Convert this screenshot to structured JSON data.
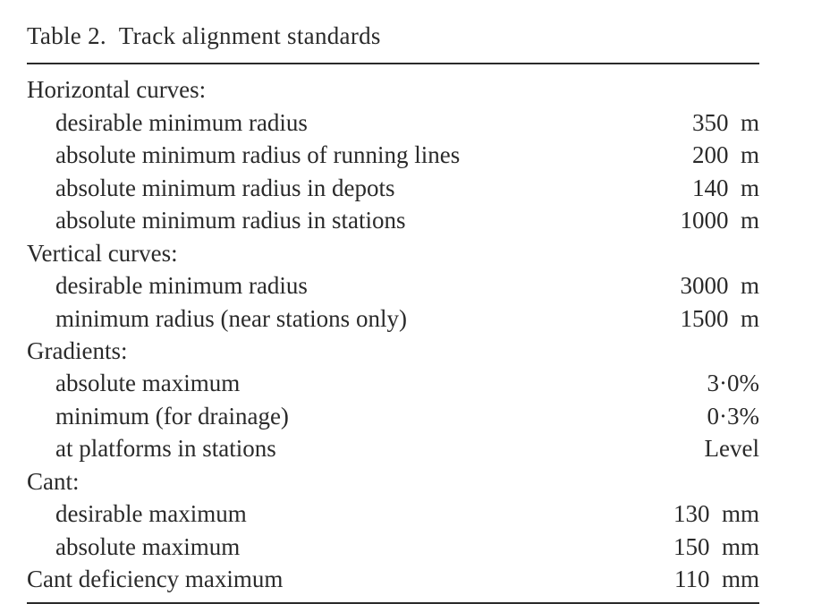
{
  "title": "Table 2. Track alignment standards",
  "sections": [
    {
      "heading": "Horizontal curves:",
      "items": [
        {
          "label": "desirable minimum radius",
          "value": "350 m"
        },
        {
          "label": "absolute minimum radius of running lines",
          "value": "200 m"
        },
        {
          "label": "absolute minimum radius in depots",
          "value": "140 m"
        },
        {
          "label": "absolute minimum radius in stations",
          "value": "1000 m"
        }
      ]
    },
    {
      "heading": "Vertical curves:",
      "items": [
        {
          "label": "desirable minimum radius",
          "value": "3000 m"
        },
        {
          "label": "minimum radius (near stations only)",
          "value": "1500 m"
        }
      ]
    },
    {
      "heading": "Gradients:",
      "items": [
        {
          "label": "absolute maximum",
          "value": "3·0%"
        },
        {
          "label": "minimum (for drainage)",
          "value": "0·3%"
        },
        {
          "label": "at platforms in stations",
          "value": "Level"
        }
      ]
    },
    {
      "heading": "Cant:",
      "items": [
        {
          "label": "desirable maximum",
          "value": "130 mm"
        },
        {
          "label": "absolute maximum",
          "value": "150 mm"
        }
      ]
    }
  ],
  "freestanding": [
    {
      "label": "Cant deficiency maximum",
      "value": "110 mm"
    }
  ]
}
